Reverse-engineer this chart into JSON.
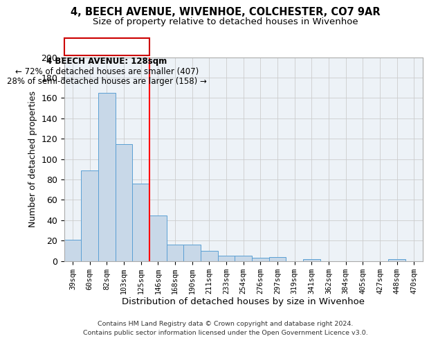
{
  "title1": "4, BEECH AVENUE, WIVENHOE, COLCHESTER, CO7 9AR",
  "title2": "Size of property relative to detached houses in Wivenhoe",
  "xlabel": "Distribution of detached houses by size in Wivenhoe",
  "ylabel": "Number of detached properties",
  "categories": [
    "39sqm",
    "60sqm",
    "82sqm",
    "103sqm",
    "125sqm",
    "146sqm",
    "168sqm",
    "190sqm",
    "211sqm",
    "233sqm",
    "254sqm",
    "276sqm",
    "297sqm",
    "319sqm",
    "341sqm",
    "362sqm",
    "384sqm",
    "405sqm",
    "427sqm",
    "448sqm",
    "470sqm"
  ],
  "values": [
    21,
    89,
    165,
    115,
    76,
    45,
    16,
    16,
    10,
    5,
    5,
    3,
    4,
    0,
    2,
    0,
    0,
    0,
    0,
    2,
    0
  ],
  "bar_color": "#c8d8e8",
  "bar_edge_color": "#5a9fd4",
  "red_line_x": 4.5,
  "annotation_title": "4 BEECH AVENUE: 128sqm",
  "annotation_line1": "← 72% of detached houses are smaller (407)",
  "annotation_line2": "28% of semi-detached houses are larger (158) →",
  "annotation_box_color": "#cc0000",
  "ylim": [
    0,
    200
  ],
  "yticks": [
    0,
    20,
    40,
    60,
    80,
    100,
    120,
    140,
    160,
    180,
    200
  ],
  "grid_color": "#cccccc",
  "bg_color": "#edf2f7",
  "footer1": "Contains HM Land Registry data © Crown copyright and database right 2024.",
  "footer2": "Contains public sector information licensed under the Open Government Licence v3.0."
}
